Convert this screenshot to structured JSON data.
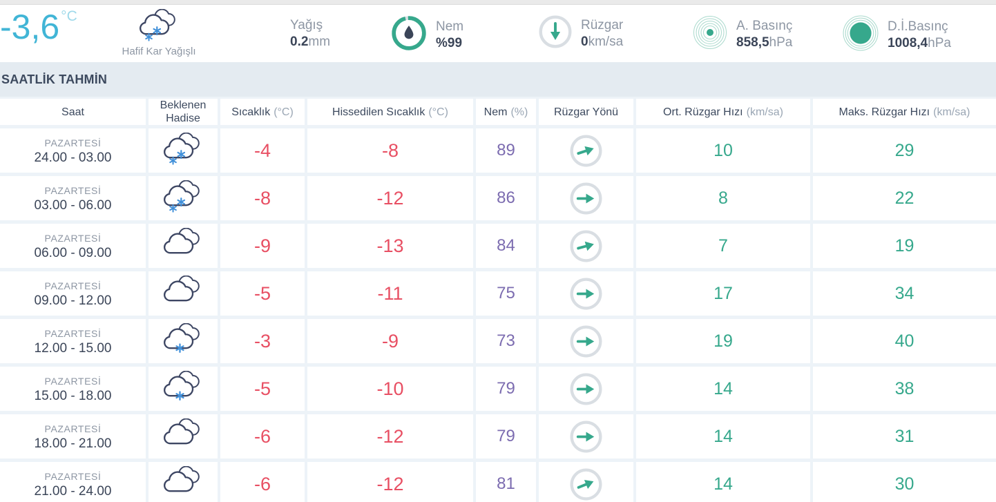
{
  "current": {
    "temperature": "-3,6",
    "temperature_unit": "°C",
    "condition": "Hafif Kar Yağışlı",
    "condition_icon": "cloud-snow-2",
    "precip": {
      "label": "Yağış",
      "value": "0.2",
      "unit": "mm"
    },
    "humidity": {
      "label": "Nem",
      "value": "%99",
      "unit": ""
    },
    "wind": {
      "label": "Rüzgar",
      "value": "0",
      "unit": "km/sa"
    },
    "pressure": {
      "label": "A. Basınç",
      "value": "858,5",
      "unit": "hPa"
    },
    "sea_pressure": {
      "label": "D.İ.Basınç",
      "value": "1008,4",
      "unit": "hPa"
    }
  },
  "section": {
    "title": "SAATLİK TAHMİN"
  },
  "table": {
    "columns": [
      {
        "label": "Saat",
        "unit": ""
      },
      {
        "label": "Beklenen Hadise",
        "unit": ""
      },
      {
        "label": "Sıcaklık",
        "unit": "(°C)"
      },
      {
        "label": "Hissedilen Sıcaklık",
        "unit": "(°C)"
      },
      {
        "label": "Nem",
        "unit": "(%)"
      },
      {
        "label": "Rüzgar Yönü",
        "unit": ""
      },
      {
        "label": "Ort. Rüzgar Hızı",
        "unit": "(km/sa)"
      },
      {
        "label": "Maks. Rüzgar Hızı",
        "unit": "(km/sa)"
      }
    ],
    "rows": [
      {
        "day": "PAZARTESİ",
        "time": "24.00 - 03.00",
        "icon": "cloud-snow-2",
        "temp": "-4",
        "feels": "-8",
        "humidity": "89",
        "wind_dir_deg": -18,
        "avg_wind": "10",
        "max_wind": "29"
      },
      {
        "day": "PAZARTESİ",
        "time": "03.00 - 06.00",
        "icon": "cloud-snow-2",
        "temp": "-8",
        "feels": "-12",
        "humidity": "86",
        "wind_dir_deg": 0,
        "avg_wind": "8",
        "max_wind": "22"
      },
      {
        "day": "PAZARTESİ",
        "time": "06.00 - 09.00",
        "icon": "cloudy",
        "temp": "-9",
        "feels": "-13",
        "humidity": "84",
        "wind_dir_deg": -15,
        "avg_wind": "7",
        "max_wind": "19"
      },
      {
        "day": "PAZARTESİ",
        "time": "09.00 - 12.00",
        "icon": "cloudy",
        "temp": "-5",
        "feels": "-11",
        "humidity": "75",
        "wind_dir_deg": 0,
        "avg_wind": "17",
        "max_wind": "34"
      },
      {
        "day": "PAZARTESİ",
        "time": "12.00 - 15.00",
        "icon": "cloud-snow-1",
        "temp": "-3",
        "feels": "-9",
        "humidity": "73",
        "wind_dir_deg": 0,
        "avg_wind": "19",
        "max_wind": "40"
      },
      {
        "day": "PAZARTESİ",
        "time": "15.00 - 18.00",
        "icon": "cloud-snow-1",
        "temp": "-5",
        "feels": "-10",
        "humidity": "79",
        "wind_dir_deg": 0,
        "avg_wind": "14",
        "max_wind": "38"
      },
      {
        "day": "PAZARTESİ",
        "time": "18.00 - 21.00",
        "icon": "cloudy",
        "temp": "-6",
        "feels": "-12",
        "humidity": "79",
        "wind_dir_deg": 0,
        "avg_wind": "14",
        "max_wind": "31"
      },
      {
        "day": "PAZARTESİ",
        "time": "21.00 - 24.00",
        "icon": "cloudy",
        "temp": "-6",
        "feels": "-12",
        "humidity": "81",
        "wind_dir_deg": -22,
        "avg_wind": "14",
        "max_wind": "30"
      }
    ]
  },
  "colors": {
    "cyan": "#41b5d6",
    "cyan_light": "#9fd9ea",
    "teal": "#36a88c",
    "teal_ring": "#a9d9cc",
    "red": "#e84f63",
    "purple": "#7c6cb0",
    "navy": "#3b4558",
    "gray": "#8d96a3",
    "flake": "#4190d9",
    "cloud": "#3d4663",
    "ring_gray": "#d9dee3",
    "band_bg": "#e4ebf1",
    "table_bg": "#edf3f8",
    "header_text": "#3c495e",
    "unit_text": "#9aa6b4",
    "strip": "#eaeaea"
  }
}
